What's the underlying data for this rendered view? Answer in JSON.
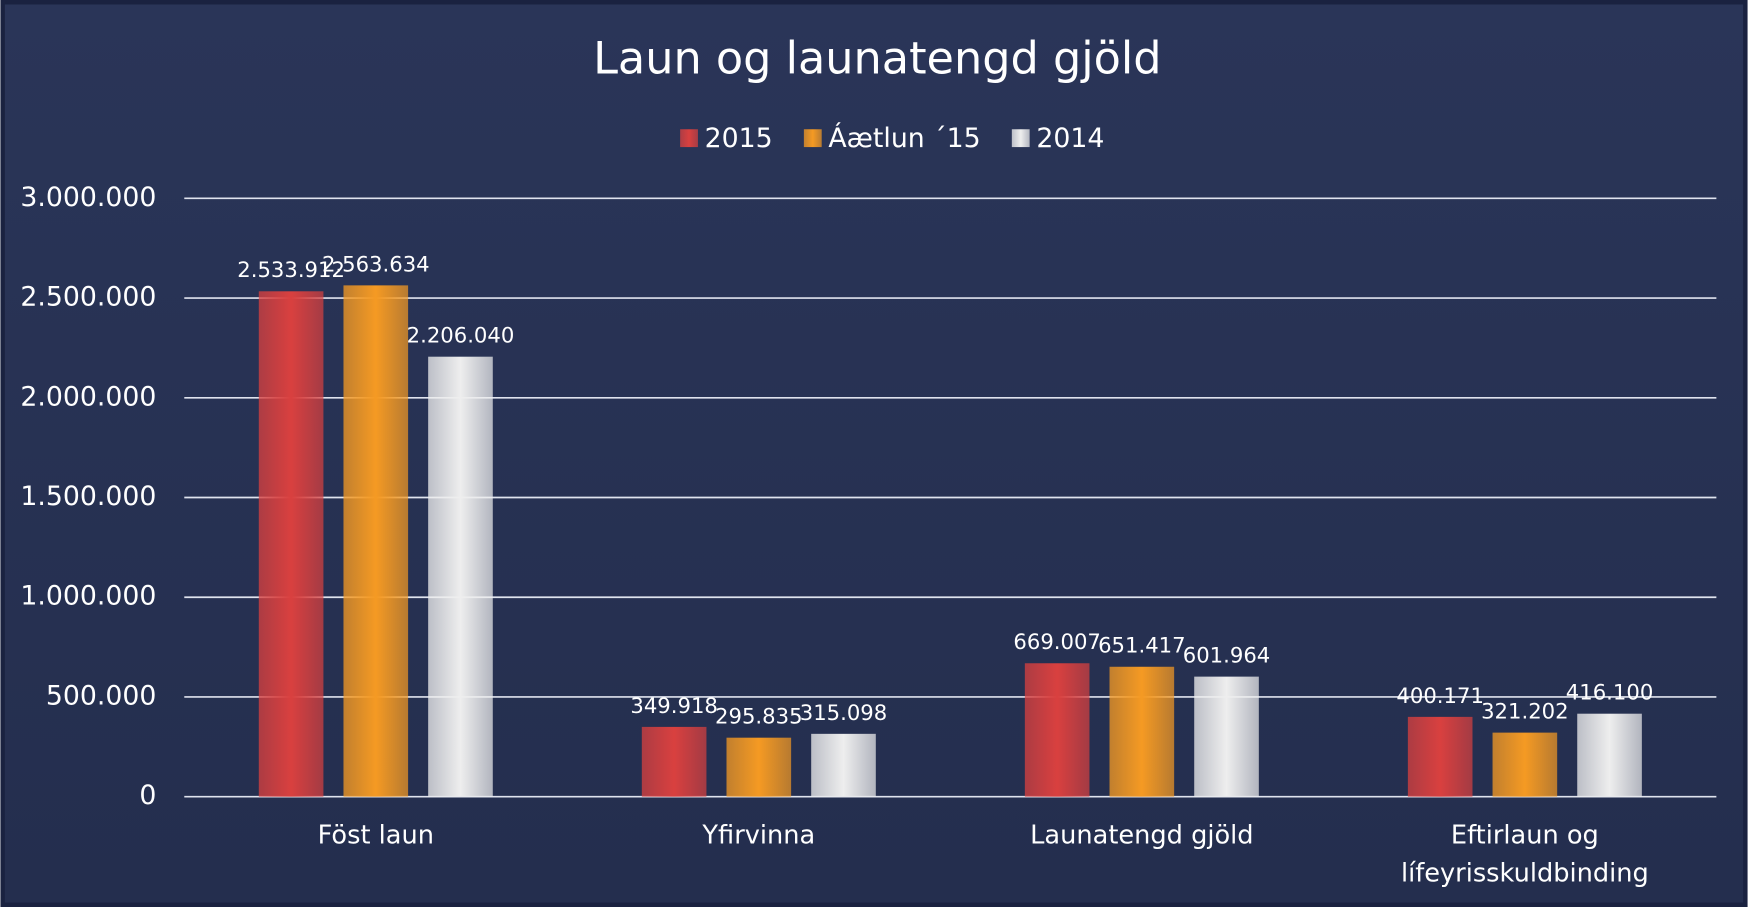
{
  "chart_data": {
    "type": "bar",
    "title": "Laun og launatengd gjöld",
    "categories": [
      "Föst laun",
      "Yfirvinna",
      "Launatengd gjöld",
      "Eftirlaun og lífeyrisskuldbinding"
    ],
    "series": [
      {
        "name": "2015",
        "color": "#d9403f",
        "values": [
          2533912,
          349918,
          669007,
          400171
        ],
        "value_labels": [
          "2.533.912",
          "349.918",
          "669.007",
          "400.171"
        ]
      },
      {
        "name": "Áætlun ´15",
        "color": "#f59a23",
        "values": [
          2563634,
          295835,
          651417,
          321202
        ],
        "value_labels": [
          "2.563.634",
          "295.835",
          "651.417",
          "321.202"
        ]
      },
      {
        "name": "2014",
        "color": "#eeeeee",
        "values": [
          2206040,
          315098,
          601964,
          416100
        ],
        "value_labels": [
          "2.206.040",
          "315.098",
          "601.964",
          "416.100"
        ]
      }
    ],
    "ylim": [
      0,
      3000000
    ],
    "yticks": [
      0,
      {
        "value": 500000,
        "label": "500.000"
      },
      {
        "value": 1000000,
        "label": "1.000.000"
      },
      {
        "value": 1500000,
        "label": "1.500.000"
      },
      {
        "value": 2000000,
        "label": "2.000.000"
      },
      {
        "value": 2500000,
        "label": "2.500.000"
      },
      {
        "value": 3000000,
        "label": "3.000.000"
      }
    ],
    "grid": true,
    "legend": "top"
  }
}
